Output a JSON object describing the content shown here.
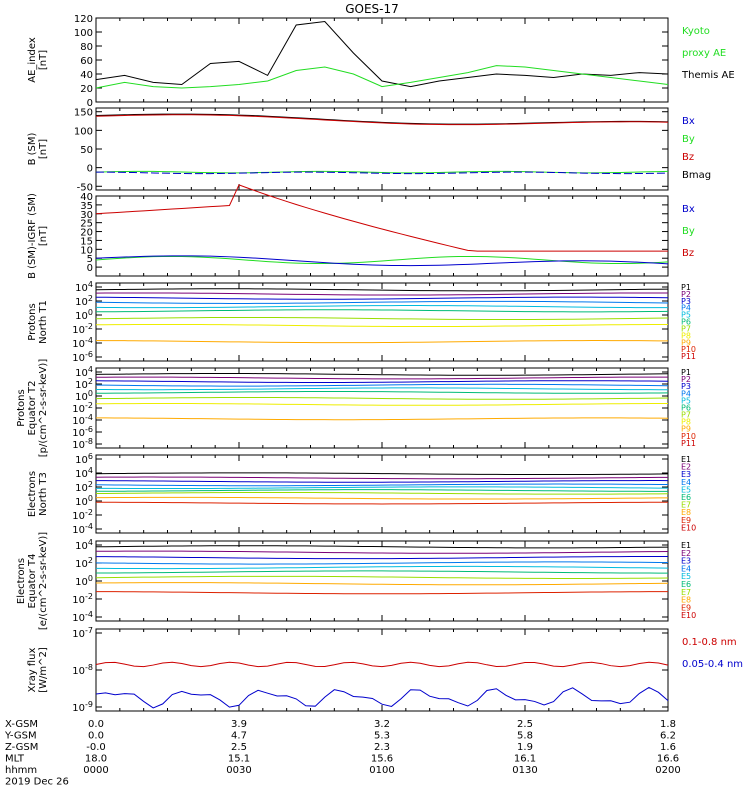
{
  "title": "GOES-17",
  "date": "2019 Dec 26",
  "colors": {
    "black": "#000000",
    "red": "#cc0000",
    "green": "#22dd22",
    "blue": "#0000cc"
  },
  "chart_data": [
    {
      "type": "line",
      "ylabel": [
        "AE_index",
        "[nT]"
      ],
      "ylim": [
        0,
        120
      ],
      "yticks": [
        0,
        20,
        40,
        60,
        80,
        100,
        120
      ],
      "yticklabels": [
        "0",
        "20",
        "40",
        "60",
        "80",
        "100",
        "120"
      ],
      "legend": [
        {
          "label": "Kyoto",
          "color": "green"
        },
        {
          "label": "proxy AE",
          "color": "green"
        },
        {
          "label": "Themis AE",
          "color": "black"
        }
      ],
      "series": [
        {
          "name": "Themis AE",
          "color": "black",
          "x": [
            0,
            0.1,
            0.2,
            0.3,
            0.4,
            0.5,
            0.6,
            0.7,
            0.8,
            0.9,
            1.0,
            1.1,
            1.2,
            1.3,
            1.4,
            1.5,
            1.6,
            1.7,
            1.8,
            1.9,
            2.0
          ],
          "y": [
            32,
            38,
            28,
            25,
            55,
            58,
            38,
            110,
            115,
            70,
            30,
            22,
            30,
            35,
            40,
            38,
            35,
            40,
            38,
            42,
            40
          ]
        },
        {
          "name": "Kyoto proxy AE",
          "color": "green",
          "x": [
            0,
            0.1,
            0.2,
            0.3,
            0.4,
            0.5,
            0.6,
            0.7,
            0.8,
            0.9,
            1.0,
            1.1,
            1.2,
            1.3,
            1.4,
            1.5,
            1.6,
            1.7,
            1.8,
            1.9,
            2.0
          ],
          "y": [
            20,
            28,
            22,
            20,
            22,
            25,
            30,
            45,
            50,
            40,
            22,
            28,
            35,
            42,
            52,
            50,
            45,
            40,
            35,
            30,
            25
          ]
        }
      ]
    },
    {
      "type": "line",
      "ylabel": [
        "B (SM)",
        "[nT]"
      ],
      "ylim": [
        -60,
        160
      ],
      "yticks": [
        -50,
        0,
        50,
        100,
        150
      ],
      "yticklabels": [
        "-50",
        "0",
        "50",
        "100",
        "150"
      ],
      "legend": [
        {
          "label": "Bx",
          "color": "blue"
        },
        {
          "label": "By",
          "color": "green"
        },
        {
          "label": "Bz",
          "color": "red"
        },
        {
          "label": "Bmag",
          "color": "black"
        }
      ]
    },
    {
      "type": "line",
      "ylabel": [
        "B (SM)-IGRF (SM)",
        "[nT]"
      ],
      "ylim": [
        -5,
        40
      ],
      "yticks": [
        0,
        5,
        10,
        15,
        20,
        25,
        30,
        35,
        40
      ],
      "yticklabels": [
        "0",
        "5",
        "10",
        "15",
        "20",
        "25",
        "30",
        "35",
        "40"
      ],
      "legend": [
        {
          "label": "Bx",
          "color": "blue"
        },
        {
          "label": "By",
          "color": "green"
        },
        {
          "label": "Bz",
          "color": "red"
        }
      ]
    },
    {
      "type": "line",
      "ylabel": [
        "Protons",
        "North T1"
      ],
      "log": true,
      "yticks": [
        4,
        2,
        0,
        -2,
        -4,
        -6
      ],
      "yticklabels": [
        "10^4",
        "10^2",
        "10^0",
        "10^-2",
        "10^-4",
        "10^-6"
      ],
      "legend": [
        {
          "label": "P1",
          "color": "#000000"
        },
        {
          "label": "P2",
          "color": "#7a0077"
        },
        {
          "label": "P3",
          "color": "#0000cc"
        },
        {
          "label": "P4",
          "color": "#0077ee"
        },
        {
          "label": "P5",
          "color": "#00bbdd"
        },
        {
          "label": "P6",
          "color": "#00bb77"
        },
        {
          "label": "P7",
          "color": "#99dd00"
        },
        {
          "label": "P8",
          "color": "#eeee00"
        },
        {
          "label": "P9",
          "color": "#ffaa00"
        },
        {
          "label": "P10",
          "color": "#dd2200"
        },
        {
          "label": "P11",
          "color": "#cc0000"
        }
      ]
    },
    {
      "type": "line",
      "ylabel": [
        "Protons",
        "Equator T2",
        "[p/(cm^2-s-sr-keV)]"
      ],
      "log": true,
      "yticks": [
        4,
        2,
        0,
        -2,
        -4,
        -6,
        -8
      ],
      "yticklabels": [
        "10^4",
        "10^2",
        "10^0",
        "10^-2",
        "10^-4",
        "10^-6",
        "10^-8"
      ],
      "legend": [
        {
          "label": "P1",
          "color": "#000000"
        },
        {
          "label": "P2",
          "color": "#7a0077"
        },
        {
          "label": "P3",
          "color": "#0000cc"
        },
        {
          "label": "P4",
          "color": "#0077ee"
        },
        {
          "label": "P5",
          "color": "#00bbdd"
        },
        {
          "label": "P6",
          "color": "#00bb77"
        },
        {
          "label": "P7",
          "color": "#99dd00"
        },
        {
          "label": "P8",
          "color": "#eeee00"
        },
        {
          "label": "P9",
          "color": "#ffaa00"
        },
        {
          "label": "P10",
          "color": "#dd2200"
        },
        {
          "label": "P11",
          "color": "#cc0000"
        }
      ]
    },
    {
      "type": "line",
      "ylabel": [
        "Electrons",
        "North T3"
      ],
      "log": true,
      "yticks": [
        6,
        4,
        2,
        0,
        -2,
        -4
      ],
      "yticklabels": [
        "10^6",
        "10^4",
        "10^2",
        "10^0",
        "10^-2",
        "10^-4"
      ],
      "legend": [
        {
          "label": "E1",
          "color": "#000000"
        },
        {
          "label": "E2",
          "color": "#7a0077"
        },
        {
          "label": "E3",
          "color": "#0000cc"
        },
        {
          "label": "E4",
          "color": "#0077ee"
        },
        {
          "label": "E5",
          "color": "#00bbdd"
        },
        {
          "label": "E6",
          "color": "#00bb77"
        },
        {
          "label": "E7",
          "color": "#99dd00"
        },
        {
          "label": "E8",
          "color": "#ffaa00"
        },
        {
          "label": "E9",
          "color": "#dd2200"
        },
        {
          "label": "E10",
          "color": "#cc0000"
        }
      ]
    },
    {
      "type": "line",
      "ylabel": [
        "Electrons",
        "Equator T4",
        "[e/(cm^2-s-sr-keV)]"
      ],
      "log": true,
      "yticks": [
        4,
        2,
        0,
        -2,
        -4
      ],
      "yticklabels": [
        "10^4",
        "10^2",
        "10^0",
        "10^-2",
        "10^-4"
      ],
      "legend": [
        {
          "label": "E1",
          "color": "#000000"
        },
        {
          "label": "E2",
          "color": "#7a0077"
        },
        {
          "label": "E3",
          "color": "#0000cc"
        },
        {
          "label": "E4",
          "color": "#0077ee"
        },
        {
          "label": "E5",
          "color": "#00bbdd"
        },
        {
          "label": "E6",
          "color": "#00bb77"
        },
        {
          "label": "E7",
          "color": "#99dd00"
        },
        {
          "label": "E8",
          "color": "#ffaa00"
        },
        {
          "label": "E9",
          "color": "#dd2200"
        },
        {
          "label": "E10",
          "color": "#cc0000"
        }
      ]
    },
    {
      "type": "line",
      "ylabel": [
        "Xray flux",
        "[W/m^2]"
      ],
      "log": true,
      "yticks": [
        -7,
        -8,
        -9
      ],
      "yticklabels": [
        "10^-7",
        "10^-8",
        "10^-9"
      ],
      "legend": [
        {
          "label": "0.1-0.8 nm",
          "color": "red"
        },
        {
          "label": "0.05-0.4 nm",
          "color": "blue"
        }
      ]
    }
  ],
  "footer": {
    "row_labels": [
      "X-GSM",
      "Y-GSM",
      "Z-GSM",
      "MLT",
      "hhmm"
    ],
    "columns": [
      {
        "values": [
          "0.0",
          "0.0",
          "-0.0",
          "18.0",
          "0000"
        ]
      },
      {
        "values": [
          "3.9",
          "4.7",
          "2.5",
          "15.1",
          "0030"
        ]
      },
      {
        "values": [
          "3.2",
          "5.3",
          "2.3",
          "15.6",
          "0100"
        ]
      },
      {
        "values": [
          "2.5",
          "5.8",
          "1.9",
          "16.1",
          "0130"
        ]
      },
      {
        "values": [
          "1.8",
          "6.2",
          "1.6",
          "16.6",
          "0200"
        ]
      }
    ]
  }
}
